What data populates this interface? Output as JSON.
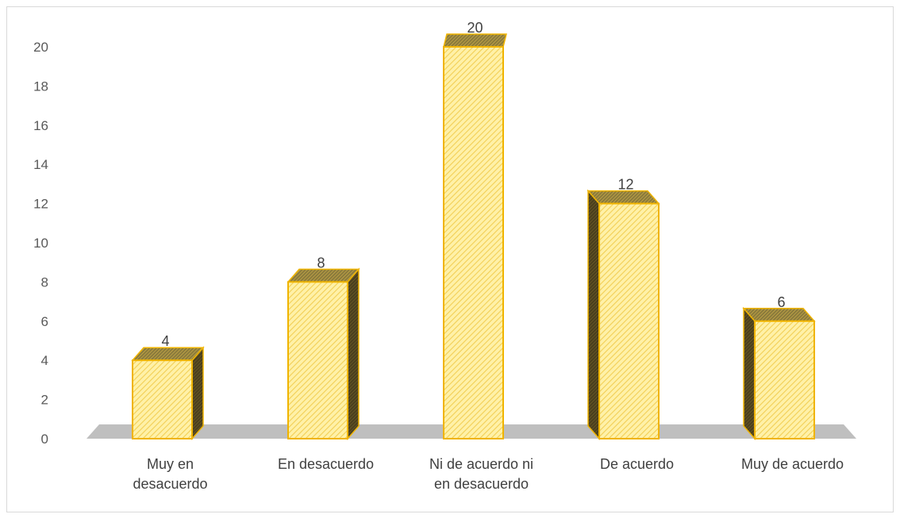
{
  "chart_data": {
    "type": "bar",
    "style": "3d-column",
    "categories": [
      [
        "Muy en",
        "desacuerdo"
      ],
      [
        "En desacuerdo"
      ],
      [
        "Ni de acuerdo ni",
        "en desacuerdo"
      ],
      [
        "De acuerdo"
      ],
      [
        "Muy de acuerdo"
      ]
    ],
    "values": [
      4,
      8,
      20,
      12,
      6
    ],
    "data_labels": [
      "4",
      "8",
      "20",
      "12",
      "6"
    ],
    "yticks": [
      "0",
      "2",
      "4",
      "6",
      "8",
      "10",
      "12",
      "14",
      "16",
      "18",
      "20"
    ],
    "ylim": [
      0,
      20
    ],
    "title": "",
    "xlabel": "",
    "ylabel": "",
    "grid": false,
    "legend": "none",
    "colors": {
      "bar_fill": "#fff1a8",
      "bar_hatch": "#f2cf55",
      "bar_edge": "#f0b400",
      "bar_side": "#5a4e2a",
      "floor": "#bfbfbf"
    }
  }
}
